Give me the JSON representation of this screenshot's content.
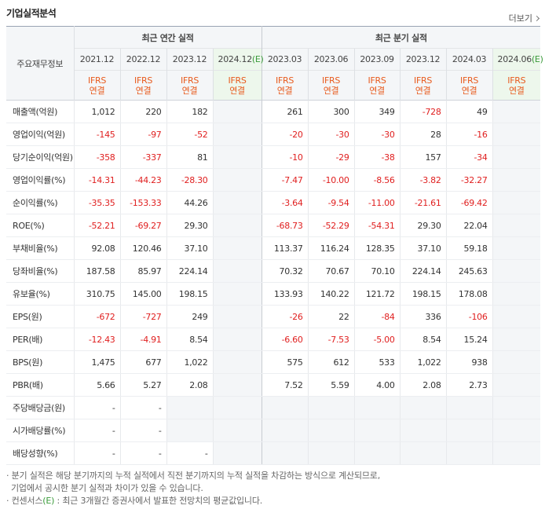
{
  "title": "기업실적분석",
  "more_label": "더보기",
  "header": {
    "row_label": "주요재무정보",
    "annual_label": "최근 연간 실적",
    "quarter_label": "최근 분기 실적",
    "ifrs": "IFRS",
    "consolidated": "연결",
    "est_mark": "(E)",
    "annual_years": [
      "2021.12",
      "2022.12",
      "2023.12",
      "2024.12"
    ],
    "quarter_periods": [
      "2023.03",
      "2023.06",
      "2023.09",
      "2023.12",
      "2024.03",
      "2024.06"
    ]
  },
  "rows": [
    {
      "label": "매출액(억원)",
      "annual": [
        "1,012",
        "220",
        "182",
        ""
      ],
      "quarter": [
        "261",
        "300",
        "349",
        "-728",
        "49",
        ""
      ]
    },
    {
      "label": "영업이익(억원)",
      "annual": [
        "-145",
        "-97",
        "-52",
        ""
      ],
      "quarter": [
        "-20",
        "-30",
        "-30",
        "28",
        "-16",
        ""
      ]
    },
    {
      "label": "당기순이익(억원)",
      "annual": [
        "-358",
        "-337",
        "81",
        ""
      ],
      "quarter": [
        "-10",
        "-29",
        "-38",
        "157",
        "-34",
        ""
      ]
    },
    {
      "label": "영업이익률(%)",
      "annual": [
        "-14.31",
        "-44.23",
        "-28.30",
        ""
      ],
      "quarter": [
        "-7.47",
        "-10.00",
        "-8.56",
        "-3.82",
        "-32.27",
        ""
      ]
    },
    {
      "label": "순이익률(%)",
      "annual": [
        "-35.35",
        "-153.33",
        "44.26",
        ""
      ],
      "quarter": [
        "-3.64",
        "-9.54",
        "-11.00",
        "-21.61",
        "-69.42",
        ""
      ]
    },
    {
      "label": "ROE(%)",
      "annual": [
        "-52.21",
        "-69.27",
        "29.30",
        ""
      ],
      "quarter": [
        "-68.73",
        "-52.29",
        "-54.31",
        "29.30",
        "22.04",
        ""
      ]
    },
    {
      "label": "부채비율(%)",
      "annual": [
        "92.08",
        "120.46",
        "37.10",
        ""
      ],
      "quarter": [
        "113.37",
        "116.24",
        "128.35",
        "37.10",
        "59.18",
        ""
      ]
    },
    {
      "label": "당좌비율(%)",
      "annual": [
        "187.58",
        "85.97",
        "224.14",
        ""
      ],
      "quarter": [
        "70.32",
        "70.67",
        "70.10",
        "224.14",
        "245.63",
        ""
      ]
    },
    {
      "label": "유보율(%)",
      "annual": [
        "310.75",
        "145.00",
        "198.15",
        ""
      ],
      "quarter": [
        "133.93",
        "140.22",
        "121.72",
        "198.15",
        "178.08",
        ""
      ]
    },
    {
      "label": "EPS(원)",
      "annual": [
        "-672",
        "-727",
        "249",
        ""
      ],
      "quarter": [
        "-26",
        "22",
        "-84",
        "336",
        "-106",
        ""
      ]
    },
    {
      "label": "PER(배)",
      "annual": [
        "-12.43",
        "-4.91",
        "8.54",
        ""
      ],
      "quarter": [
        "-6.60",
        "-7.53",
        "-5.00",
        "8.54",
        "15.24",
        ""
      ]
    },
    {
      "label": "BPS(원)",
      "annual": [
        "1,475",
        "677",
        "1,022",
        ""
      ],
      "quarter": [
        "575",
        "612",
        "533",
        "1,022",
        "938",
        ""
      ]
    },
    {
      "label": "PBR(배)",
      "annual": [
        "5.66",
        "5.27",
        "2.08",
        ""
      ],
      "quarter": [
        "7.52",
        "5.59",
        "4.00",
        "2.08",
        "2.73",
        ""
      ]
    },
    {
      "label": "주당배당금(원)",
      "annual": [
        "-",
        "-",
        "",
        ""
      ],
      "quarter": [
        "",
        "",
        "",
        "",
        "",
        ""
      ]
    },
    {
      "label": "시가배당률(%)",
      "annual": [
        "-",
        "-",
        "",
        ""
      ],
      "quarter": [
        "",
        "",
        "",
        "",
        "",
        ""
      ]
    },
    {
      "label": "배당성향(%)",
      "annual": [
        "-",
        "-",
        "-",
        ""
      ],
      "quarter": [
        "",
        "",
        "",
        "",
        "",
        ""
      ]
    }
  ],
  "notes": {
    "line1": "분기 실적은 해당 분기까지의 누적 실적에서 직전 분기까지의 누적 실적을 차감하는 방식으로 계산되므로,",
    "line2": "기업에서 공시한 분기 실적과 차이가 있을 수 있습니다.",
    "line3_pre": "컨센서스",
    "line3_mark": "(E)",
    "line3_post": ": 최근 3개월간 증권사에서 발표한 전망치의 평균값입니다."
  },
  "colors": {
    "ifrs": "#e85a1d",
    "negative": "#e02020",
    "estimate": "#3a9b3a"
  }
}
